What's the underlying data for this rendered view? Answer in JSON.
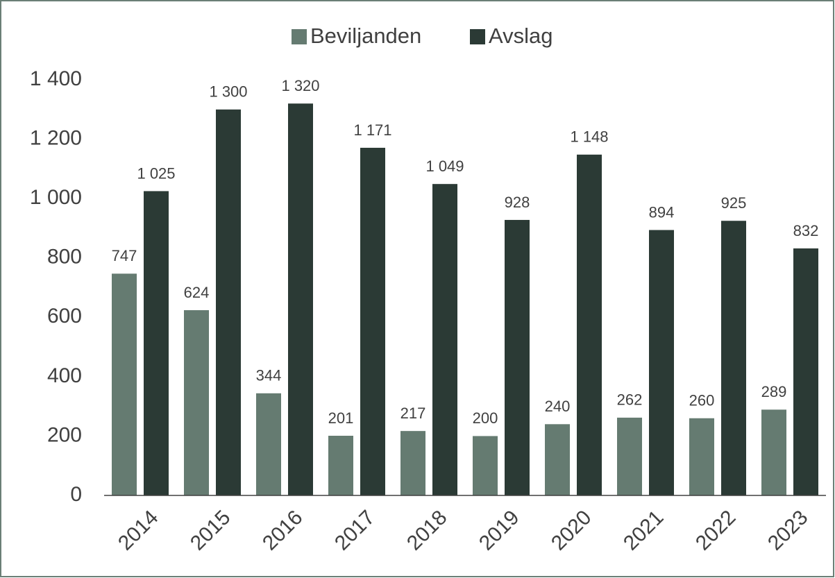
{
  "chart_data": {
    "type": "bar",
    "categories": [
      "2014",
      "2015",
      "2016",
      "2017",
      "2018",
      "2019",
      "2020",
      "2021",
      "2022",
      "2023"
    ],
    "series": [
      {
        "name": "Beviljanden",
        "color": "#657b71",
        "values": [
          747,
          624,
          344,
          201,
          217,
          200,
          240,
          262,
          260,
          289
        ],
        "value_labels": [
          "747",
          "624",
          "344",
          "201",
          "217",
          "200",
          "240",
          "262",
          "260",
          "289"
        ]
      },
      {
        "name": "Avslag",
        "color": "#2b3a35",
        "values": [
          1025,
          1300,
          1320,
          1171,
          1049,
          928,
          1148,
          894,
          925,
          832
        ],
        "value_labels": [
          "1 025",
          "1 300",
          "1 320",
          "1 171",
          "1 049",
          "928",
          "1 148",
          "894",
          "925",
          "832"
        ]
      }
    ],
    "ylim": [
      0,
      1400
    ],
    "yticks": [
      0,
      200,
      400,
      600,
      800,
      {
        "value": 1000,
        "label": "1 000"
      },
      {
        "value": 1200,
        "label": "1 200"
      },
      {
        "value": 1400,
        "label": "1 400"
      }
    ],
    "legend": "top",
    "grid": false
  }
}
